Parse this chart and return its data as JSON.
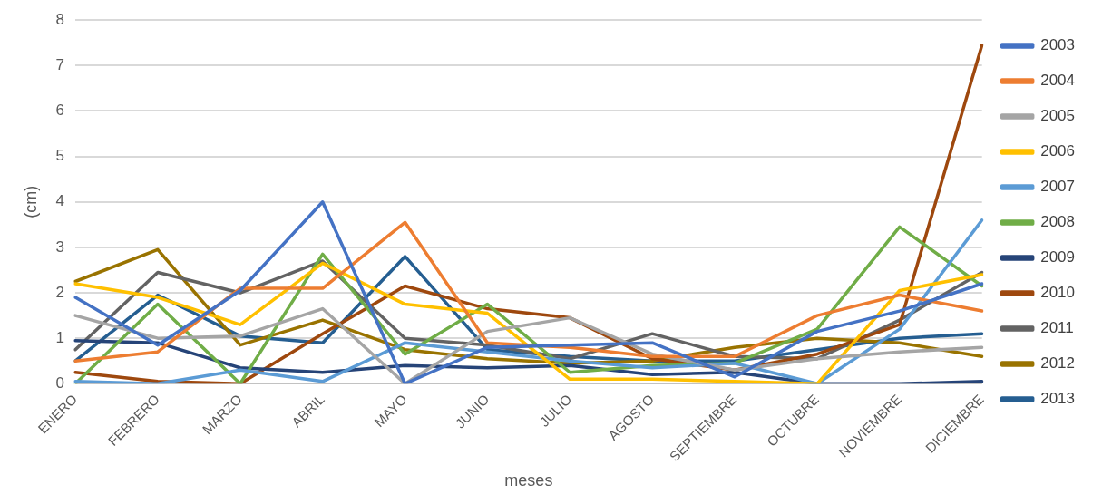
{
  "chart_data": {
    "type": "line",
    "xlabel": "meses",
    "ylabel": "(cm)",
    "categories": [
      "ENERO",
      "FEBRERO",
      "MARZO",
      "ABRIL",
      "MAYO",
      "JUNIO",
      "JULIO",
      "AGOSTO",
      "SEPTIEMBRE",
      "OCTUBRE",
      "NOVIEMBRE",
      "DICIEMBRE"
    ],
    "series": [
      {
        "name": "2003",
        "color": "#4472c4",
        "values": [
          1.9,
          0.85,
          2.05,
          4.0,
          0.0,
          0.8,
          0.85,
          0.9,
          0.15,
          1.15,
          1.6,
          2.2
        ]
      },
      {
        "name": "2004",
        "color": "#ed7d31",
        "values": [
          0.5,
          0.7,
          2.1,
          2.1,
          3.55,
          0.9,
          0.8,
          0.6,
          0.6,
          1.5,
          1.95,
          1.6
        ]
      },
      {
        "name": "2005",
        "color": "#a5a5a5",
        "values": [
          1.5,
          1.0,
          1.05,
          1.65,
          0.0,
          1.15,
          1.45,
          0.65,
          0.3,
          0.55,
          0.7,
          0.8
        ]
      },
      {
        "name": "2006",
        "color": "#ffc000",
        "values": [
          2.2,
          1.9,
          1.3,
          2.65,
          1.75,
          1.55,
          0.1,
          0.1,
          0.05,
          0.0,
          2.05,
          2.4
        ]
      },
      {
        "name": "2007",
        "color": "#5b9bd5",
        "values": [
          0.05,
          0.0,
          0.3,
          0.05,
          0.9,
          0.7,
          0.5,
          0.35,
          0.45,
          0.0,
          1.2,
          3.6
        ]
      },
      {
        "name": "2008",
        "color": "#70ad47",
        "values": [
          0.0,
          1.75,
          0.0,
          2.85,
          0.65,
          1.75,
          0.25,
          0.4,
          0.45,
          1.2,
          3.45,
          2.15
        ]
      },
      {
        "name": "2009",
        "color": "#264478",
        "values": [
          0.95,
          0.9,
          0.35,
          0.25,
          0.4,
          0.35,
          0.4,
          0.2,
          0.25,
          0.0,
          0.0,
          0.05
        ]
      },
      {
        "name": "2010",
        "color": "#9e480e",
        "values": [
          0.25,
          0.05,
          0.0,
          1.1,
          2.15,
          1.65,
          1.45,
          0.55,
          0.3,
          0.65,
          1.3,
          7.45
        ]
      },
      {
        "name": "2011",
        "color": "#636363",
        "values": [
          0.75,
          2.45,
          2.0,
          2.7,
          1.0,
          0.85,
          0.55,
          1.1,
          0.6,
          0.55,
          1.4,
          2.45
        ]
      },
      {
        "name": "2012",
        "color": "#997300",
        "values": [
          2.25,
          2.95,
          0.85,
          1.4,
          0.75,
          0.55,
          0.45,
          0.5,
          0.8,
          1.0,
          0.9,
          0.6
        ]
      },
      {
        "name": "2013",
        "color": "#255e91",
        "values": [
          0.5,
          1.95,
          1.05,
          0.9,
          2.8,
          0.75,
          0.6,
          0.5,
          0.5,
          0.75,
          1.0,
          1.1
        ]
      }
    ],
    "ylim": [
      0,
      8
    ],
    "yticks": [
      0,
      1,
      2,
      3,
      4,
      5,
      6,
      7,
      8
    ],
    "grid": "y",
    "legend": "right",
    "marker": "none",
    "line_style": "solid"
  }
}
